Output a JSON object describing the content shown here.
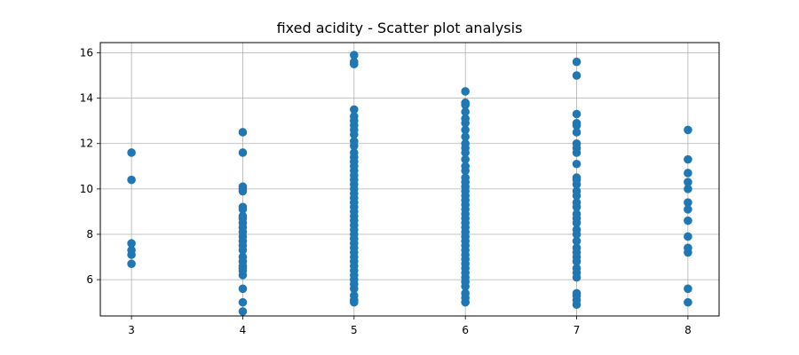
{
  "chart_data": {
    "type": "scatter",
    "title": "fixed acidity - Scatter plot analysis",
    "xlabel": "",
    "ylabel": "",
    "xlim": [
      2.72,
      8.28
    ],
    "ylim": [
      4.4,
      16.45
    ],
    "xticks": [
      3,
      4,
      5,
      6,
      7,
      8
    ],
    "yticks": [
      6,
      8,
      10,
      12,
      14,
      16
    ],
    "grid": true,
    "marker_color": "#1f77b4",
    "points": [
      {
        "x": 3,
        "ys": [
          6.7,
          7.1,
          7.3,
          7.6,
          10.4,
          11.6
        ]
      },
      {
        "x": 4,
        "ys": [
          4.6,
          5.0,
          5.6,
          6.2,
          6.4,
          6.5,
          6.6,
          6.8,
          7.0,
          7.3,
          7.5,
          7.7,
          7.9,
          8.1,
          8.3,
          8.5,
          8.7,
          8.8,
          9.1,
          9.2,
          9.9,
          10.0,
          10.1,
          11.6,
          12.5
        ]
      },
      {
        "x": 5,
        "ys": [
          5.0,
          5.1,
          5.3,
          5.6,
          5.8,
          6.0,
          6.2,
          6.4,
          6.6,
          6.8,
          7.0,
          7.2,
          7.4,
          7.6,
          7.8,
          8.0,
          8.2,
          8.4,
          8.6,
          8.8,
          9.0,
          9.2,
          9.4,
          9.6,
          9.8,
          10.0,
          10.2,
          10.4,
          10.6,
          10.8,
          11.0,
          11.2,
          11.4,
          11.6,
          11.9,
          12.1,
          12.4,
          12.6,
          12.8,
          13.0,
          13.2,
          13.5,
          15.5,
          15.6,
          15.9
        ]
      },
      {
        "x": 6,
        "ys": [
          5.0,
          5.2,
          5.4,
          5.7,
          5.9,
          6.1,
          6.3,
          6.5,
          6.7,
          6.9,
          7.1,
          7.3,
          7.5,
          7.7,
          7.9,
          8.1,
          8.3,
          8.5,
          8.7,
          8.9,
          9.1,
          9.3,
          9.5,
          9.7,
          9.9,
          10.1,
          10.3,
          10.5,
          10.8,
          11.0,
          11.3,
          11.6,
          11.8,
          12.0,
          12.3,
          12.6,
          12.9,
          13.1,
          13.4,
          13.7,
          13.8,
          14.3
        ]
      },
      {
        "x": 7,
        "ys": [
          4.9,
          5.1,
          5.3,
          5.4,
          6.1,
          6.3,
          6.5,
          6.8,
          7.0,
          7.2,
          7.4,
          7.7,
          8.0,
          8.2,
          8.5,
          8.7,
          8.9,
          9.2,
          9.4,
          9.7,
          9.9,
          10.2,
          10.4,
          10.5,
          11.1,
          11.6,
          11.8,
          12.0,
          12.5,
          12.8,
          12.9,
          13.3,
          15.0,
          15.6
        ]
      },
      {
        "x": 8,
        "ys": [
          5.0,
          5.6,
          7.2,
          7.4,
          7.9,
          8.6,
          9.1,
          9.4,
          10.0,
          10.3,
          10.7,
          11.3,
          12.6
        ]
      }
    ]
  }
}
